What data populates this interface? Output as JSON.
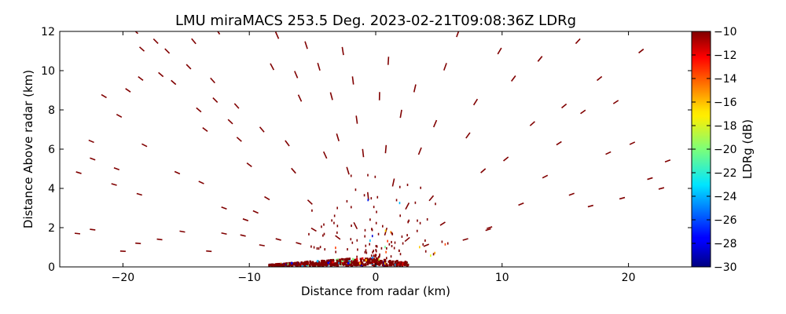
{
  "chart_data": {
    "type": "scatter",
    "title": "LMU miraMACS 253.5 Deg. 2023-02-21T09:08:36Z  LDRg",
    "xlabel": "Distance from radar (km)",
    "ylabel": "Distance Above radar  (km)",
    "xlim": [
      -25,
      25
    ],
    "ylim": [
      0,
      12
    ],
    "xticks": [
      "−20",
      "−10",
      "0",
      "10",
      "20"
    ],
    "xtick_values": [
      -20,
      -10,
      0,
      10,
      20
    ],
    "yticks": [
      "0",
      "2",
      "4",
      "6",
      "8",
      "10",
      "12"
    ],
    "ytick_values": [
      0,
      2,
      4,
      6,
      8,
      10,
      12
    ],
    "grid": false,
    "colorbar": {
      "label": "LDRg (dB)",
      "range": [
        -30,
        -10
      ],
      "colormap": "jet",
      "ticks": [
        "−10",
        "−12",
        "−14",
        "−16",
        "−18",
        "−20",
        "−22",
        "−24",
        "−26",
        "−28",
        "−30"
      ],
      "tick_values": [
        -10,
        -12,
        -14,
        -16,
        -18,
        -20,
        -22,
        -24,
        -26,
        -28,
        -30
      ]
    },
    "dominant_value_db": -10,
    "sparse_echo_segments": [
      [
        -23.5,
        4.8,
        -10
      ],
      [
        -22.5,
        6.4,
        -10
      ],
      [
        -22.4,
        5.5,
        -10
      ],
      [
        -21.5,
        8.7,
        -10
      ],
      [
        -20.7,
        4.2,
        -10
      ],
      [
        -20.5,
        5.0,
        -10
      ],
      [
        -20.3,
        7.7,
        -10
      ],
      [
        -19.6,
        9.0,
        -10
      ],
      [
        -19.0,
        12.0,
        -10
      ],
      [
        -18.5,
        11.1,
        -10
      ],
      [
        -18.6,
        9.6,
        -10
      ],
      [
        -18.3,
        6.2,
        -10
      ],
      [
        -18.7,
        3.7,
        -10
      ],
      [
        -17.4,
        11.5,
        -10
      ],
      [
        -17.0,
        9.8,
        -10
      ],
      [
        -16.5,
        11.0,
        -10
      ],
      [
        -16.0,
        9.4,
        -10
      ],
      [
        -15.7,
        4.8,
        -10
      ],
      [
        -14.8,
        10.2,
        -10
      ],
      [
        -14.4,
        11.5,
        -10
      ],
      [
        -14.0,
        8.0,
        -10
      ],
      [
        -13.8,
        4.3,
        -10
      ],
      [
        -13.5,
        7.0,
        -10
      ],
      [
        -12.9,
        9.5,
        -10
      ],
      [
        -12.7,
        8.5,
        -10
      ],
      [
        -12.5,
        12.0,
        -10
      ],
      [
        -12.0,
        3.0,
        -10
      ],
      [
        -11.5,
        7.4,
        -10
      ],
      [
        -11.0,
        8.2,
        -10
      ],
      [
        -10.8,
        6.5,
        -10
      ],
      [
        -10.5,
        1.6,
        -10
      ],
      [
        -10.0,
        5.2,
        -10
      ],
      [
        -9.5,
        2.8,
        -10
      ],
      [
        -9.0,
        7.0,
        -10
      ],
      [
        -8.6,
        3.5,
        -10
      ],
      [
        -8.2,
        10.2,
        -10
      ],
      [
        -7.8,
        11.8,
        -10
      ],
      [
        -7.0,
        6.3,
        -10
      ],
      [
        -6.5,
        4.9,
        -10
      ],
      [
        -6.3,
        9.8,
        -10
      ],
      [
        -6.0,
        8.6,
        -10
      ],
      [
        -5.5,
        11.3,
        -10
      ],
      [
        -5.2,
        3.3,
        -10
      ],
      [
        -4.5,
        10.2,
        -10
      ],
      [
        -4.0,
        5.7,
        -10
      ],
      [
        -3.5,
        8.7,
        -10
      ],
      [
        -3.0,
        6.6,
        -10
      ],
      [
        -2.6,
        11.0,
        -10
      ],
      [
        -2.2,
        4.9,
        -10
      ],
      [
        -1.8,
        9.5,
        -10
      ],
      [
        -1.5,
        7.5,
        -10
      ],
      [
        -1.0,
        5.8,
        -10
      ],
      [
        -0.6,
        3.6,
        -10
      ],
      [
        0.3,
        8.7,
        -10
      ],
      [
        0.8,
        6.0,
        -10
      ],
      [
        1.0,
        10.5,
        -10
      ],
      [
        1.4,
        4.3,
        -10
      ],
      [
        2.0,
        7.8,
        -10
      ],
      [
        2.5,
        3.1,
        -10
      ],
      [
        3.1,
        9.1,
        -10
      ],
      [
        3.5,
        5.9,
        -10
      ],
      [
        4.4,
        3.5,
        -10
      ],
      [
        4.7,
        7.3,
        -10
      ],
      [
        5.5,
        10.2,
        -10
      ],
      [
        6.5,
        11.9,
        -10
      ],
      [
        7.3,
        6.7,
        -10
      ],
      [
        7.9,
        8.4,
        -10
      ],
      [
        8.5,
        4.9,
        -10
      ],
      [
        9.0,
        2.0,
        -10
      ],
      [
        9.8,
        11.0,
        -10
      ],
      [
        10.3,
        5.5,
        -10
      ],
      [
        10.9,
        9.6,
        -10
      ],
      [
        11.5,
        3.2,
        -10
      ],
      [
        12.4,
        7.3,
        -10
      ],
      [
        13.0,
        10.6,
        -10
      ],
      [
        13.4,
        4.6,
        -10
      ],
      [
        14.5,
        6.3,
        -10
      ],
      [
        14.9,
        8.2,
        -10
      ],
      [
        15.5,
        3.7,
        -10
      ],
      [
        16.0,
        11.5,
        -10
      ],
      [
        16.4,
        7.9,
        -10
      ],
      [
        17.0,
        3.1,
        -10
      ],
      [
        17.7,
        9.6,
        -10
      ],
      [
        18.4,
        5.8,
        -10
      ],
      [
        19.0,
        8.4,
        -10
      ],
      [
        19.5,
        3.5,
        -10
      ],
      [
        20.3,
        6.3,
        -10
      ],
      [
        21.0,
        11.0,
        -10
      ],
      [
        21.7,
        4.5,
        -10
      ],
      [
        22.6,
        4.0,
        -10
      ],
      [
        23.1,
        5.4,
        -10
      ],
      [
        -23.6,
        1.7,
        -10
      ],
      [
        -22.4,
        1.9,
        -10
      ],
      [
        -20.0,
        0.8,
        -10
      ],
      [
        -18.8,
        1.2,
        -10
      ],
      [
        -17.1,
        1.4,
        -10
      ],
      [
        -15.3,
        1.8,
        -10
      ],
      [
        -13.2,
        0.8,
        -10
      ],
      [
        -12.0,
        1.7,
        -10
      ],
      [
        -10.3,
        2.4,
        -10
      ],
      [
        -9.0,
        1.1,
        -10
      ],
      [
        -7.7,
        1.4,
        -10
      ],
      [
        -6.1,
        1.2,
        -10
      ],
      [
        -4.9,
        1.9,
        -10
      ],
      [
        -3.0,
        1.5,
        -10
      ],
      [
        -1.6,
        2.1,
        -10
      ],
      [
        0.8,
        1.8,
        -10
      ],
      [
        2.5,
        1.4,
        -10
      ],
      [
        4.0,
        1.1,
        -10
      ],
      [
        5.3,
        2.2,
        -10
      ],
      [
        7.1,
        1.4,
        -10
      ],
      [
        8.9,
        1.9,
        -10
      ]
    ],
    "ground_clutter_band": {
      "x_range_km": [
        -8.5,
        2.5
      ],
      "height_range_km": [
        0.0,
        0.4
      ],
      "values_db": [
        -10,
        -12,
        -16,
        -20,
        -24,
        -28
      ]
    }
  }
}
